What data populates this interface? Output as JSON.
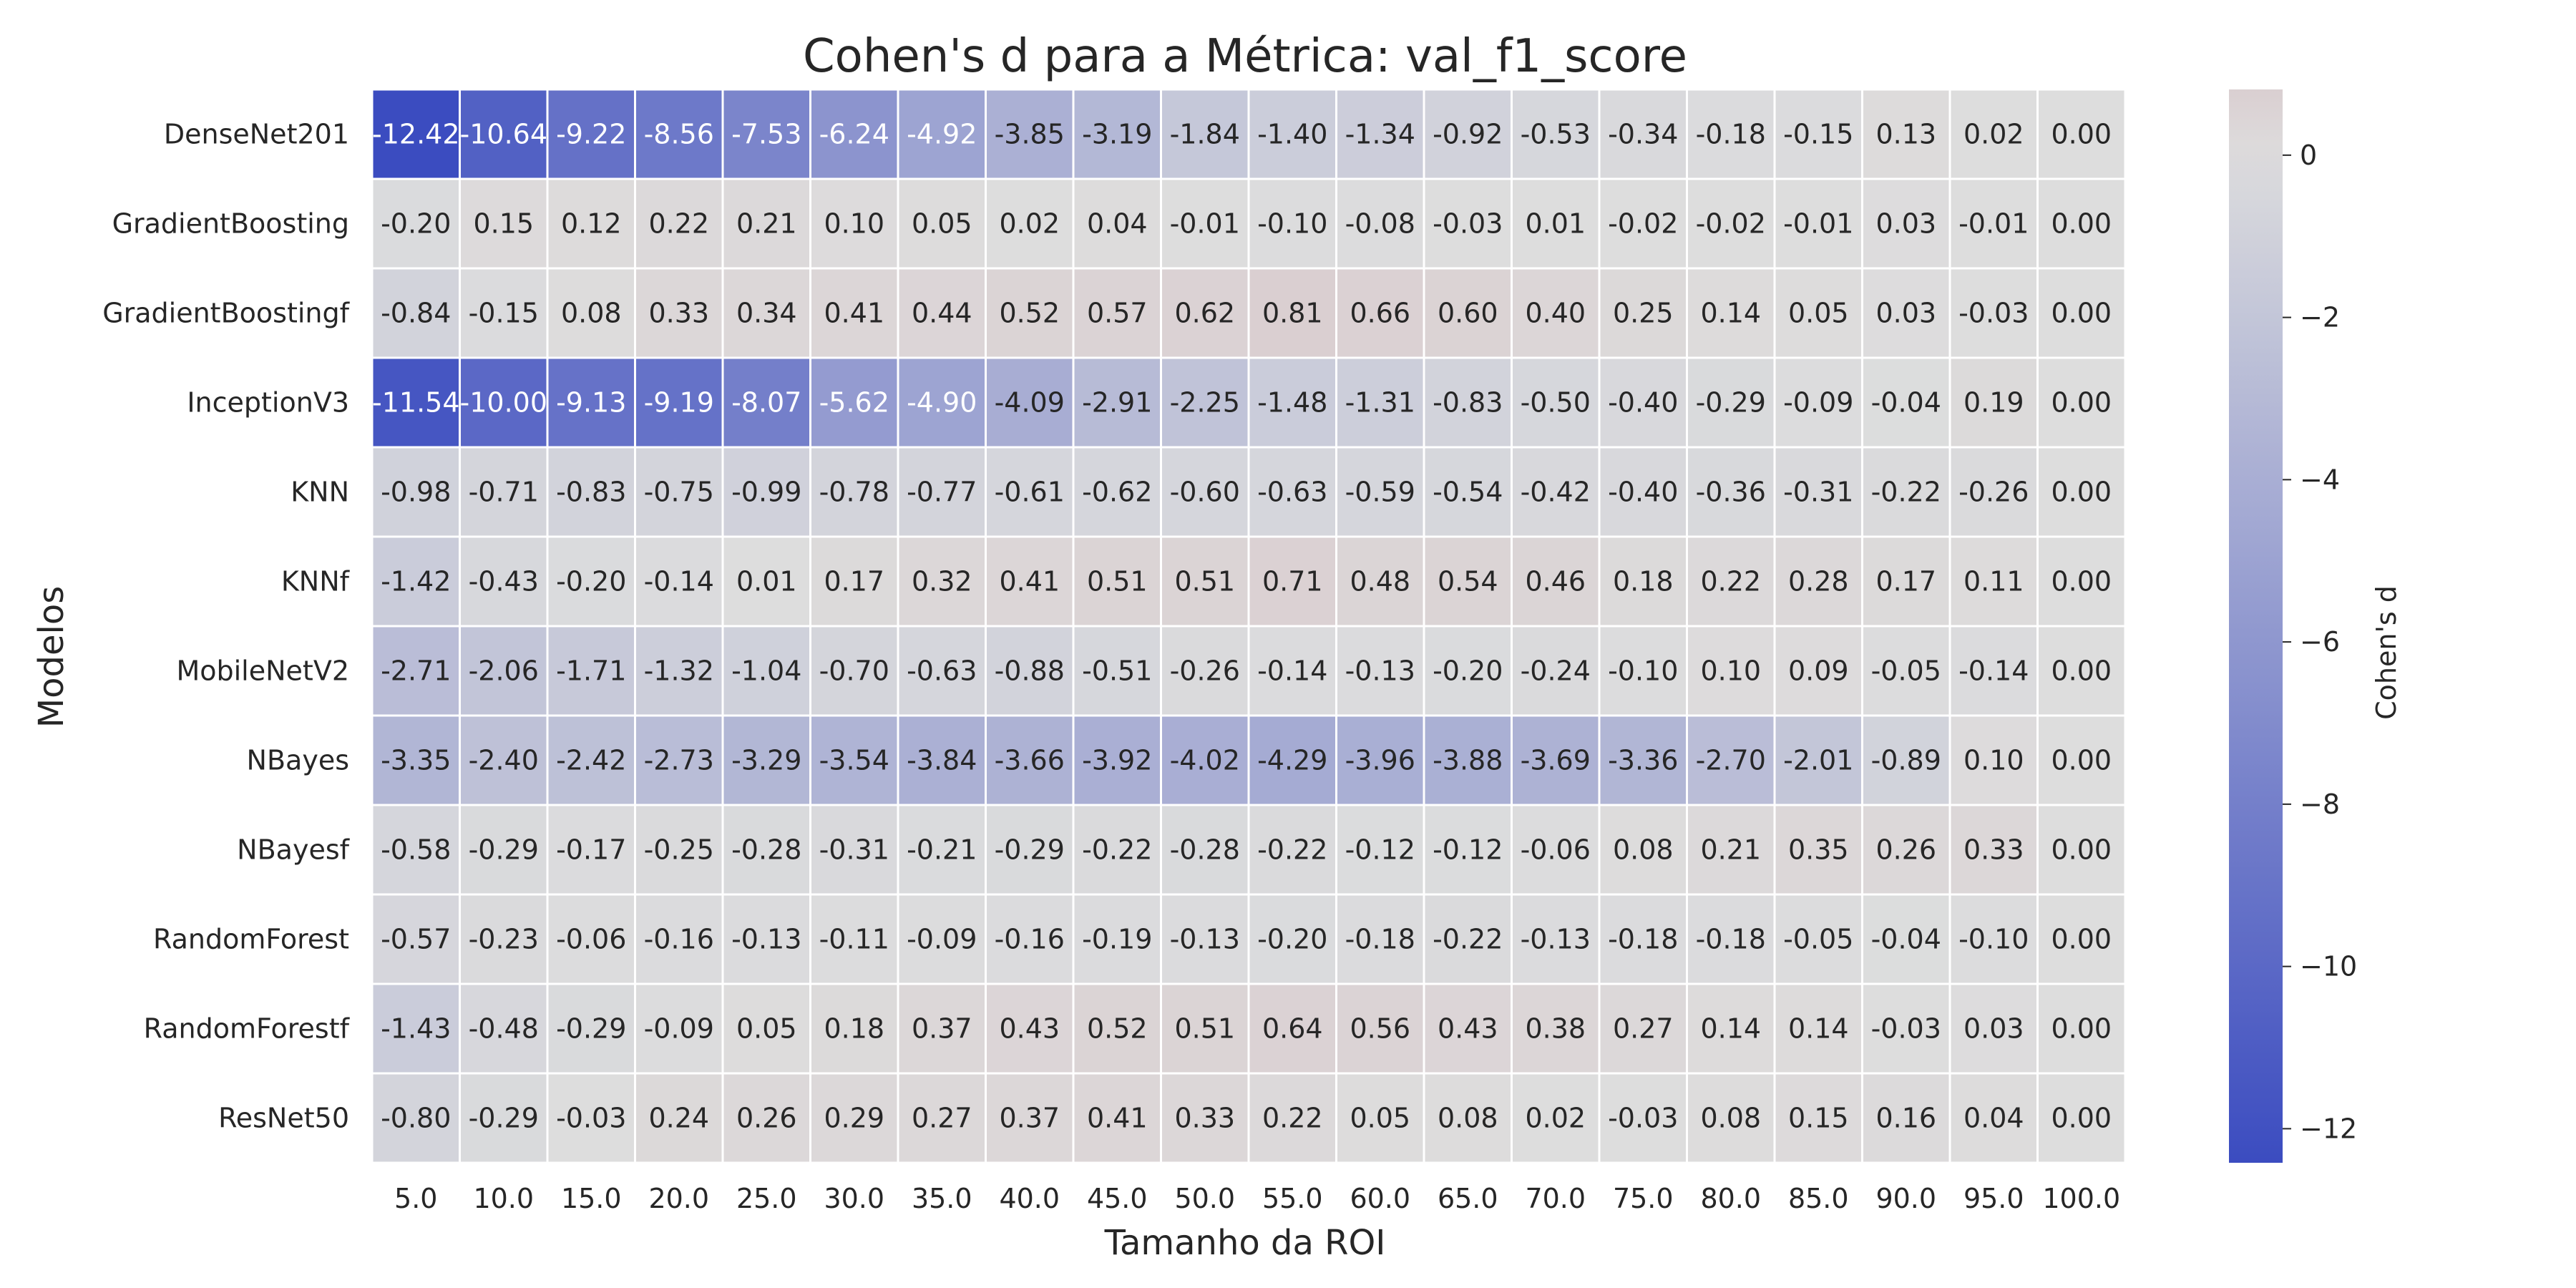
{
  "chart_data": {
    "type": "heatmap",
    "title": "Cohen's d para a Métrica: val_f1_score",
    "xlabel": "Tamanho da ROI",
    "ylabel": "Modelos",
    "colorbar_label": "Cohen's d",
    "x": [
      "5.0",
      "10.0",
      "15.0",
      "20.0",
      "25.0",
      "30.0",
      "35.0",
      "40.0",
      "45.0",
      "50.0",
      "55.0",
      "60.0",
      "65.0",
      "70.0",
      "75.0",
      "80.0",
      "85.0",
      "90.0",
      "95.0",
      "100.0"
    ],
    "y": [
      "DenseNet201",
      "GradientBoosting",
      "GradientBoostingf",
      "InceptionV3",
      "KNN",
      "KNNf",
      "MobileNetV2",
      "NBayes",
      "NBayesf",
      "RandomForest",
      "RandomForestf",
      "ResNet50"
    ],
    "values": [
      [
        -12.42,
        -10.64,
        -9.22,
        -8.56,
        -7.53,
        -6.24,
        -4.92,
        -3.85,
        -3.19,
        -1.84,
        -1.4,
        -1.34,
        -0.92,
        -0.53,
        -0.34,
        -0.18,
        -0.15,
        0.13,
        0.02,
        0.0
      ],
      [
        -0.2,
        0.15,
        0.12,
        0.22,
        0.21,
        0.1,
        0.05,
        0.02,
        0.04,
        -0.01,
        -0.1,
        -0.08,
        -0.03,
        0.01,
        -0.02,
        -0.02,
        -0.01,
        0.03,
        -0.01,
        0.0
      ],
      [
        -0.84,
        -0.15,
        0.08,
        0.33,
        0.34,
        0.41,
        0.44,
        0.52,
        0.57,
        0.62,
        0.81,
        0.66,
        0.6,
        0.4,
        0.25,
        0.14,
        0.05,
        0.03,
        -0.03,
        0.0
      ],
      [
        -11.54,
        -10.0,
        -9.13,
        -9.19,
        -8.07,
        -5.62,
        -4.9,
        -4.09,
        -2.91,
        -2.25,
        -1.48,
        -1.31,
        -0.83,
        -0.5,
        -0.4,
        -0.29,
        -0.09,
        -0.04,
        0.19,
        0.0
      ],
      [
        -0.98,
        -0.71,
        -0.83,
        -0.75,
        -0.99,
        -0.78,
        -0.77,
        -0.61,
        -0.62,
        -0.6,
        -0.63,
        -0.59,
        -0.54,
        -0.42,
        -0.4,
        -0.36,
        -0.31,
        -0.22,
        -0.26,
        0.0
      ],
      [
        -1.42,
        -0.43,
        -0.2,
        -0.14,
        0.01,
        0.17,
        0.32,
        0.41,
        0.51,
        0.51,
        0.71,
        0.48,
        0.54,
        0.46,
        0.18,
        0.22,
        0.28,
        0.17,
        0.11,
        0.0
      ],
      [
        -2.71,
        -2.06,
        -1.71,
        -1.32,
        -1.04,
        -0.7,
        -0.63,
        -0.88,
        -0.51,
        -0.26,
        -0.14,
        -0.13,
        -0.2,
        -0.24,
        -0.1,
        0.1,
        0.09,
        -0.05,
        -0.14,
        0.0
      ],
      [
        -3.35,
        -2.4,
        -2.42,
        -2.73,
        -3.29,
        -3.54,
        -3.84,
        -3.66,
        -3.92,
        -4.02,
        -4.29,
        -3.96,
        -3.88,
        -3.69,
        -3.36,
        -2.7,
        -2.01,
        -0.89,
        0.1,
        0.0
      ],
      [
        -0.58,
        -0.29,
        -0.17,
        -0.25,
        -0.28,
        -0.31,
        -0.21,
        -0.29,
        -0.22,
        -0.28,
        -0.22,
        -0.12,
        -0.12,
        -0.06,
        0.08,
        0.21,
        0.35,
        0.26,
        0.33,
        0.0
      ],
      [
        -0.57,
        -0.23,
        -0.06,
        -0.16,
        -0.13,
        -0.11,
        -0.09,
        -0.16,
        -0.19,
        -0.13,
        -0.2,
        -0.18,
        -0.22,
        -0.13,
        -0.18,
        -0.18,
        -0.05,
        -0.04,
        -0.1,
        0.0
      ],
      [
        -1.43,
        -0.48,
        -0.29,
        -0.09,
        0.05,
        0.18,
        0.37,
        0.43,
        0.52,
        0.51,
        0.64,
        0.56,
        0.43,
        0.38,
        0.27,
        0.14,
        0.14,
        -0.03,
        0.03,
        0.0
      ],
      [
        -0.8,
        -0.29,
        -0.03,
        0.24,
        0.26,
        0.29,
        0.27,
        0.37,
        0.41,
        0.33,
        0.22,
        0.05,
        0.08,
        0.02,
        -0.03,
        0.08,
        0.15,
        0.16,
        0.04,
        0.0
      ]
    ],
    "value_format": "2 decimals",
    "colormap": "coolwarm",
    "color_range": [
      -12.42,
      0.81
    ],
    "colorbar_ticks": [
      0,
      -2,
      -4,
      -6,
      -8,
      -10,
      -12
    ],
    "colorbar_tick_labels": [
      "0",
      "−2",
      "−4",
      "−6",
      "−8",
      "−10",
      "−12"
    ],
    "grid": false,
    "colors": {
      "low": "#3b4cc0",
      "mid": "#dddddd",
      "high": "#b40426",
      "cell_border": "#ffffff",
      "text_dark": "#262626",
      "text_light": "#ffffff"
    }
  }
}
